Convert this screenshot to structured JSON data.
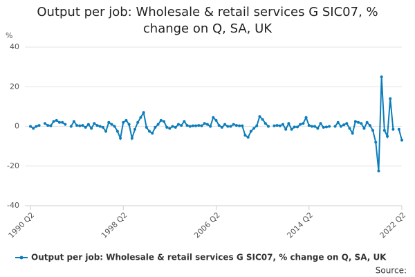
{
  "chart_data": {
    "type": "line",
    "title": "Output per job: Wholesale & retail services G SIC07, % change on Q, SA, UK",
    "ylabel": "%",
    "source_label": "Source:",
    "legend": "bottom",
    "grid": true,
    "categories": [
      "1990 Q2",
      null,
      null,
      null,
      null,
      null,
      null,
      null,
      null,
      null,
      null,
      null,
      null,
      null,
      null,
      null,
      null,
      null,
      null,
      null,
      null,
      null,
      null,
      null,
      null,
      null,
      null,
      null,
      null,
      null,
      null,
      null,
      "1998 Q2",
      null,
      null,
      null,
      null,
      null,
      null,
      null,
      null,
      null,
      null,
      null,
      null,
      null,
      null,
      null,
      null,
      null,
      null,
      null,
      null,
      null,
      null,
      null,
      null,
      null,
      null,
      null,
      null,
      null,
      null,
      null,
      "2006 Q2",
      null,
      null,
      null,
      null,
      null,
      null,
      null,
      null,
      null,
      null,
      null,
      null,
      null,
      null,
      null,
      null,
      null,
      null,
      null,
      null,
      null,
      null,
      null,
      null,
      null,
      null,
      null,
      null,
      null,
      null,
      null,
      "2014 Q2",
      null,
      null,
      null,
      null,
      null,
      null,
      null,
      null,
      null,
      null,
      null,
      null,
      null,
      null,
      null,
      null,
      null,
      null,
      null,
      null,
      null,
      null,
      null,
      null,
      null,
      null,
      null,
      null,
      null,
      null,
      null,
      "2022 Q2"
    ],
    "series": [
      {
        "name": "Output per job: Wholesale & retail services G SIC07, % change on Q, SA, UK",
        "color": "#0b7cba",
        "values": [
          0,
          -1,
          0,
          0.5,
          null,
          1.5,
          0.5,
          0.3,
          2.5,
          3,
          2,
          2,
          1,
          null,
          0,
          2.5,
          0.5,
          0.3,
          0.5,
          -0.5,
          1,
          -1,
          1.5,
          0.5,
          0,
          -0.5,
          -2.5,
          2,
          1,
          0,
          -2.5,
          -6,
          2,
          3,
          1,
          -6,
          -1.5,
          2,
          4.5,
          7,
          -0.5,
          -2.5,
          -3.5,
          -0.5,
          1,
          3,
          2.5,
          -0.5,
          -1,
          0,
          -0.5,
          1,
          0.5,
          2.5,
          0.5,
          0,
          0.3,
          0.3,
          0.5,
          0.3,
          1.5,
          1,
          0,
          4.5,
          3,
          0.5,
          -0.5,
          1,
          0,
          0,
          1,
          0.5,
          0.3,
          0.3,
          -4.5,
          -5.5,
          -2.5,
          -1,
          0.3,
          5,
          3.5,
          1.5,
          0,
          null,
          0.3,
          0.5,
          0.3,
          1,
          -1.5,
          1.5,
          -1.5,
          -0.3,
          -0.3,
          1,
          1.5,
          4.5,
          0.5,
          0,
          0,
          -1,
          1.5,
          -0.5,
          -0.3,
          0,
          null,
          0,
          2,
          0,
          0.8,
          1.5,
          -1,
          -3.5,
          2.5,
          2,
          1.5,
          -1,
          2,
          0.5,
          -2,
          -8,
          -22.5,
          25,
          -2,
          -5,
          14,
          -1.5,
          null,
          -1.5,
          -7
        ]
      }
    ],
    "ylim": [
      -40,
      40
    ],
    "yticks": [
      -40,
      -20,
      0,
      20,
      40
    ]
  }
}
